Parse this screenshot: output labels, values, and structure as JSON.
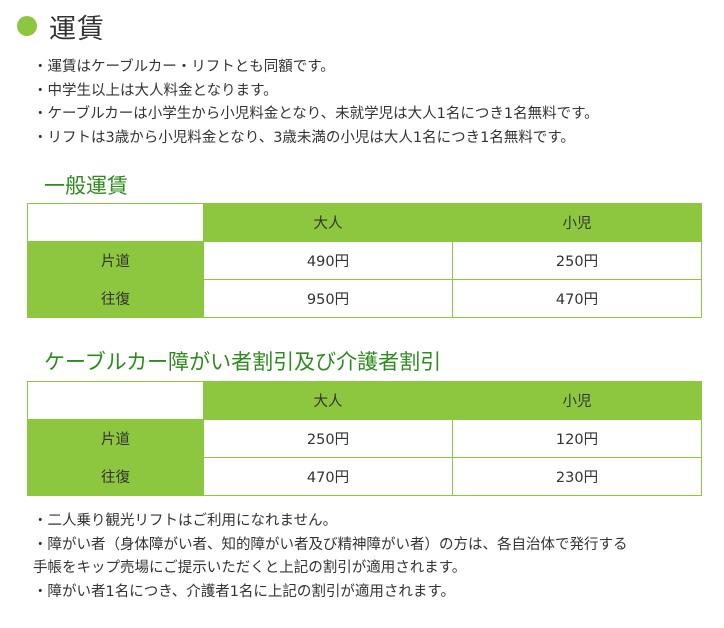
{
  "page": {
    "title": "運賃"
  },
  "notes": [
    "・運賃はケーブルカー・リフトとも同額です。",
    "・中学生以上は大人料金となります。",
    "・ケーブルカーは小学生から小児料金となり、未就学児は大人1名につき1名無料です。",
    "・リフトは3歳から小児料金となり、3歳未満の小児は大人1名につき1名無料です。"
  ],
  "general": {
    "title": "一般運賃",
    "columns": [
      "大人",
      "小児"
    ],
    "rows": [
      {
        "label": "片道",
        "adult": "490円",
        "child": "250円"
      },
      {
        "label": "往復",
        "adult": "950円",
        "child": "470円"
      }
    ]
  },
  "discount": {
    "title": "ケーブルカー障がい者割引及び介護者割引",
    "columns": [
      "大人",
      "小児"
    ],
    "rows": [
      {
        "label": "片道",
        "adult": "250円",
        "child": "120円"
      },
      {
        "label": "往復",
        "adult": "470円",
        "child": "230円"
      }
    ]
  },
  "footer_notes": [
    "・二人乗り観光リフトはご利用になれません。",
    "・障がい者（身体障がい者、知的障がい者及び精神障がい者）の方は、各自治体で発行する",
    "手帳をキップ売場にご提示いただくと上記の割引が適用されます。",
    "・障がい者1名につき、介護者1名に上記の割引が適用されます。"
  ],
  "colors": {
    "accent": "#8dc63f",
    "title_green": "#2e8b1e"
  }
}
